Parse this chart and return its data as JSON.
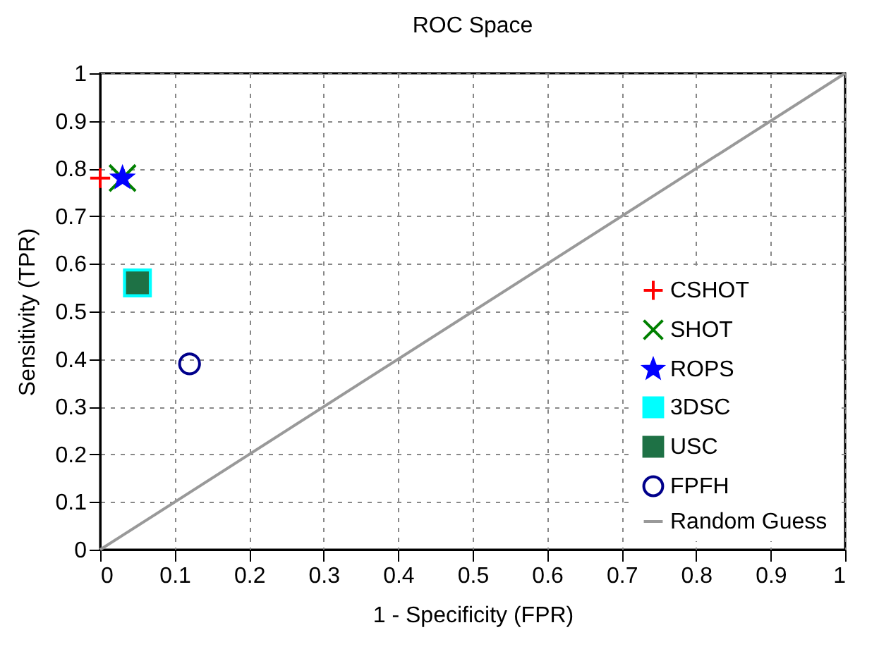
{
  "chart_data": {
    "type": "scatter",
    "title": "ROC Space",
    "xlabel": "1 - Specificity (FPR)",
    "ylabel": "Sensitivity (TPR)",
    "xlim": [
      0,
      1
    ],
    "ylim": [
      0,
      1
    ],
    "xticks": [
      0,
      0.1,
      0.2,
      0.3,
      0.4,
      0.5,
      0.6,
      0.7,
      0.8,
      0.9,
      1
    ],
    "yticks": [
      0,
      0.1,
      0.2,
      0.3,
      0.4,
      0.5,
      0.6,
      0.7,
      0.8,
      0.9,
      1
    ],
    "grid": true,
    "legend": "bottom right",
    "series": [
      {
        "name": "CSHOT",
        "color": "#ff0000",
        "marker": "cross",
        "x": [
          0
        ],
        "values": [
          0.78
        ]
      },
      {
        "name": "SHOT",
        "color": "#008000",
        "marker": "x",
        "x": [
          0.03
        ],
        "values": [
          0.78
        ]
      },
      {
        "name": "ROPS",
        "color": "#0000ff",
        "marker": "star",
        "x": [
          0.03
        ],
        "values": [
          0.78
        ]
      },
      {
        "name": "3DSC",
        "color": "#00ffff",
        "marker": "square",
        "x": [
          0.05
        ],
        "values": [
          0.56
        ]
      },
      {
        "name": "USC",
        "color": "#1e7145",
        "marker": "square",
        "x": [
          0.05
        ],
        "values": [
          0.56
        ]
      },
      {
        "name": "FPFH",
        "color": "#00008b",
        "marker": "circle",
        "x": [
          0.12
        ],
        "values": [
          0.39
        ]
      },
      {
        "name": "Random Guess",
        "type": "line",
        "color": "#999999",
        "x": [
          0,
          1
        ],
        "values": [
          0,
          1
        ]
      }
    ]
  }
}
